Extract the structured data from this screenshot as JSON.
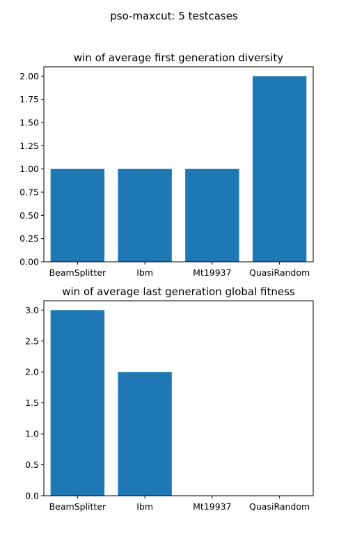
{
  "figure": {
    "suptitle": "pso-maxcut: 5 testcases"
  },
  "colors": {
    "bar": "#1f77b4",
    "background": "#ffffff"
  },
  "chart_data": [
    {
      "type": "bar",
      "title": "win of average first generation diversity",
      "xlabel": "",
      "ylabel": "",
      "categories": [
        "BeamSplitter",
        "Ibm",
        "Mt19937",
        "QuasiRandom"
      ],
      "values": [
        1,
        1,
        1,
        2
      ],
      "ylim": [
        0,
        2.1
      ],
      "yticks": [
        0.0,
        0.25,
        0.5,
        0.75,
        1.0,
        1.25,
        1.5,
        1.75,
        2.0
      ],
      "ytick_labels": [
        "0.00",
        "0.25",
        "0.50",
        "0.75",
        "1.00",
        "1.25",
        "1.50",
        "1.75",
        "2.00"
      ],
      "grid": false,
      "legend": "none"
    },
    {
      "type": "bar",
      "title": "win of average last generation global fitness",
      "xlabel": "",
      "ylabel": "",
      "categories": [
        "BeamSplitter",
        "Ibm",
        "Mt19937",
        "QuasiRandom"
      ],
      "values": [
        3,
        2,
        0,
        0
      ],
      "ylim": [
        0,
        3.15
      ],
      "yticks": [
        0.0,
        0.5,
        1.0,
        1.5,
        2.0,
        2.5,
        3.0
      ],
      "ytick_labels": [
        "0.0",
        "0.5",
        "1.0",
        "1.5",
        "2.0",
        "2.5",
        "3.0"
      ],
      "grid": false,
      "legend": "none"
    }
  ]
}
